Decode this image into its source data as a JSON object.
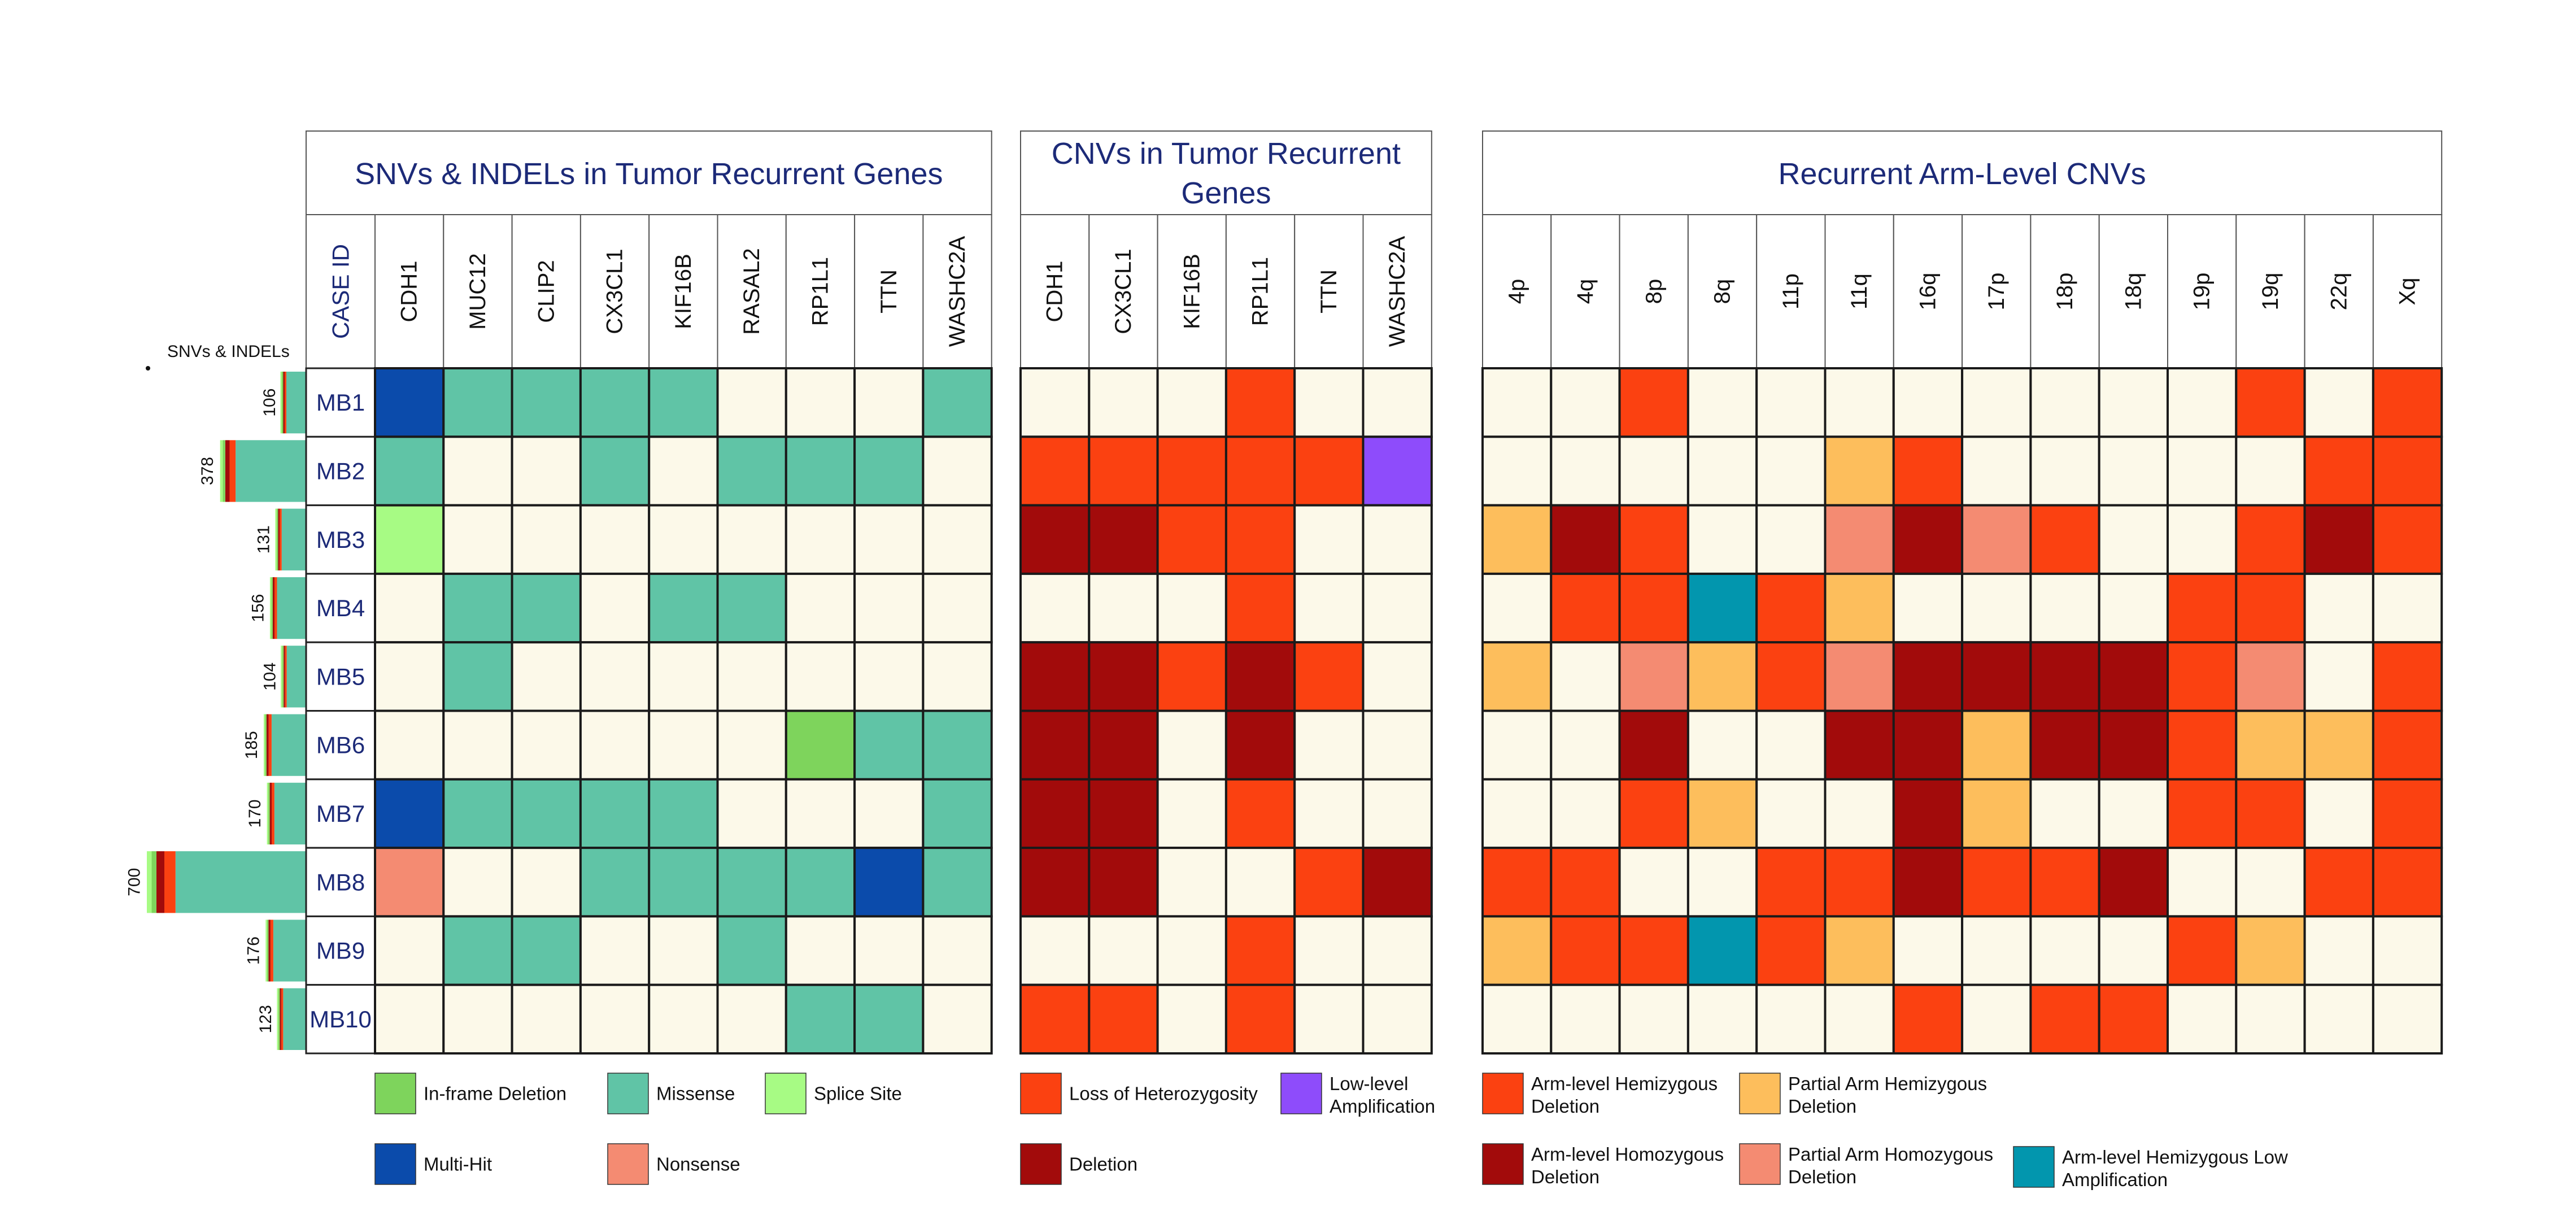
{
  "chart_data": {
    "type": "heatmap",
    "cases": [
      "MB1",
      "MB2",
      "MB3",
      "MB4",
      "MB5",
      "MB6",
      "MB7",
      "MB8",
      "MB9",
      "MB10"
    ],
    "case_id_header": "CASE ID",
    "bar_label": "SNVs & INDELs",
    "snv_counts": [
      106,
      378,
      131,
      156,
      104,
      185,
      170,
      700,
      176,
      123
    ],
    "panels": [
      {
        "title": "SNVs & INDELs in Tumor Recurrent Genes",
        "columns": [
          "CDH1",
          "MUC12",
          "CLIP2",
          "CX3CL1",
          "KIF16B",
          "RASAL2",
          "RP1L1",
          "TTN",
          "WASHC2A"
        ],
        "cells": [
          [
            "MH",
            "MS",
            "MS",
            "MS",
            "MS",
            "-",
            "-",
            "-",
            "MS"
          ],
          [
            "MS",
            "-",
            "-",
            "MS",
            "-",
            "MS",
            "MS",
            "MS",
            "-"
          ],
          [
            "SS",
            "-",
            "-",
            "-",
            "-",
            "-",
            "-",
            "-",
            "-"
          ],
          [
            "-",
            "MS",
            "MS",
            "-",
            "MS",
            "MS",
            "-",
            "-",
            "-"
          ],
          [
            "-",
            "MS",
            "-",
            "-",
            "-",
            "-",
            "-",
            "-",
            "-"
          ],
          [
            "-",
            "-",
            "-",
            "-",
            "-",
            "-",
            "IF",
            "MS",
            "MS"
          ],
          [
            "MH",
            "MS",
            "MS",
            "MS",
            "MS",
            "-",
            "-",
            "-",
            "MS"
          ],
          [
            "NS",
            "-",
            "-",
            "MS",
            "MS",
            "MS",
            "MS",
            "MH",
            "MS"
          ],
          [
            "-",
            "MS",
            "MS",
            "-",
            "-",
            "MS",
            "-",
            "-",
            "-"
          ],
          [
            "-",
            "-",
            "-",
            "-",
            "-",
            "-",
            "MS",
            "MS",
            "-"
          ]
        ],
        "legend": [
          {
            "code": "IF",
            "label": "In-frame Deletion"
          },
          {
            "code": "MS",
            "label": "Missense"
          },
          {
            "code": "SS",
            "label": "Splice Site"
          },
          {
            "code": "MH",
            "label": "Multi-Hit"
          },
          {
            "code": "NS",
            "label": "Nonsense"
          }
        ]
      },
      {
        "title_lines": [
          "CNVs in Tumor Recurrent",
          "Genes"
        ],
        "columns": [
          "CDH1",
          "CX3CL1",
          "KIF16B",
          "RP1L1",
          "TTN",
          "WASHC2A"
        ],
        "cells": [
          [
            "-",
            "-",
            "-",
            "LOH",
            "-",
            "-"
          ],
          [
            "LOH",
            "LOH",
            "LOH",
            "LOH",
            "LOH",
            "LLA"
          ],
          [
            "DEL",
            "DEL",
            "LOH",
            "LOH",
            "-",
            "-"
          ],
          [
            "-",
            "-",
            "-",
            "LOH",
            "-",
            "-"
          ],
          [
            "DEL",
            "DEL",
            "LOH",
            "DEL",
            "LOH",
            "-"
          ],
          [
            "DEL",
            "DEL",
            "-",
            "DEL",
            "-",
            "-"
          ],
          [
            "DEL",
            "DEL",
            "-",
            "LOH",
            "-",
            "-"
          ],
          [
            "DEL",
            "DEL",
            "-",
            "-",
            "LOH",
            "DEL"
          ],
          [
            "-",
            "-",
            "-",
            "LOH",
            "-",
            "-"
          ],
          [
            "LOH",
            "LOH",
            "-",
            "LOH",
            "-",
            "-"
          ]
        ],
        "legend": [
          {
            "code": "LOH",
            "label": "Loss of Heterozygosity"
          },
          {
            "code": "LLA",
            "label_lines": [
              "Low-level",
              "Amplification"
            ]
          },
          {
            "code": "DEL",
            "label": "Deletion"
          }
        ]
      },
      {
        "title": "Recurrent Arm-Level CNVs",
        "columns": [
          "4p",
          "4q",
          "8p",
          "8q",
          "11p",
          "11q",
          "16q",
          "17p",
          "18p",
          "18q",
          "19p",
          "19q",
          "22q",
          "Xq"
        ],
        "cells": [
          [
            "-",
            "-",
            "AHD",
            "-",
            "-",
            "-",
            "-",
            "-",
            "-",
            "-",
            "-",
            "AHD",
            "-",
            "AHD"
          ],
          [
            "-",
            "-",
            "-",
            "-",
            "-",
            "PHD",
            "AHD",
            "-",
            "-",
            "-",
            "-",
            "-",
            "AHD",
            "AHD"
          ],
          [
            "PHD",
            "AHO",
            "AHD",
            "-",
            "-",
            "PHO",
            "AHO",
            "PHO",
            "AHD",
            "-",
            "-",
            "AHD",
            "AHO",
            "AHD"
          ],
          [
            "-",
            "AHD",
            "AHD",
            "AMP",
            "AHD",
            "PHD",
            "-",
            "-",
            "-",
            "-",
            "AHD",
            "AHD",
            "-",
            "-"
          ],
          [
            "PHD",
            "-",
            "PHO",
            "PHD",
            "AHD",
            "PHO",
            "AHO",
            "AHO",
            "AHO",
            "AHO",
            "AHD",
            "PHO",
            "-",
            "AHD"
          ],
          [
            "-",
            "-",
            "AHO",
            "-",
            "-",
            "AHO",
            "AHO",
            "PHD",
            "AHO",
            "AHO",
            "AHD",
            "PHD",
            "PHD",
            "AHD"
          ],
          [
            "-",
            "-",
            "AHD",
            "PHD",
            "-",
            "-",
            "AHO",
            "PHD",
            "-",
            "-",
            "AHD",
            "AHD",
            "-",
            "AHD"
          ],
          [
            "AHD",
            "AHD",
            "-",
            "-",
            "AHD",
            "AHD",
            "AHO",
            "AHD",
            "AHD",
            "AHO",
            "-",
            "-",
            "AHD",
            "AHD"
          ],
          [
            "PHD",
            "AHD",
            "AHD",
            "AMP",
            "AHD",
            "PHD",
            "-",
            "-",
            "-",
            "-",
            "AHD",
            "PHD",
            "-",
            "-"
          ],
          [
            "-",
            "-",
            "-",
            "-",
            "-",
            "-",
            "AHD",
            "-",
            "AHD",
            "AHD",
            "-",
            "-",
            "-",
            "-"
          ]
        ],
        "legend": [
          {
            "code": "AHD",
            "label_lines": [
              "Arm-level Hemizygous",
              "Deletion"
            ]
          },
          {
            "code": "PHD",
            "label_lines": [
              "Partial Arm Hemizygous",
              "Deletion"
            ]
          },
          {
            "code": "AHO",
            "label_lines": [
              "Arm-level Homozygous",
              "Deletion"
            ]
          },
          {
            "code": "PHO",
            "label_lines": [
              "Partial Arm Homozygous",
              "Deletion"
            ]
          },
          {
            "code": "AMP",
            "label_lines": [
              "Arm-level Hemizygous Low",
              "Amplification"
            ]
          }
        ]
      }
    ],
    "colors": {
      "-": "#fcf9e9",
      "MS": "#60c4a6",
      "MH": "#0b4bab",
      "SS": "#a7fb84",
      "IF": "#7ed45c",
      "NS": "#f48b72",
      "LOH": "#fb4111",
      "DEL": "#a20b0b",
      "LLA": "#8e4cfb",
      "AHD": "#fb4111",
      "PHD": "#fdbe5c",
      "AHO": "#a20b0b",
      "PHO": "#f48b72",
      "AMP": "#0296ae"
    },
    "bar_colors": [
      "#60c4a6",
      "#fb4111",
      "#a20b0b",
      "#7ed45c",
      "#a7fb84"
    ]
  }
}
